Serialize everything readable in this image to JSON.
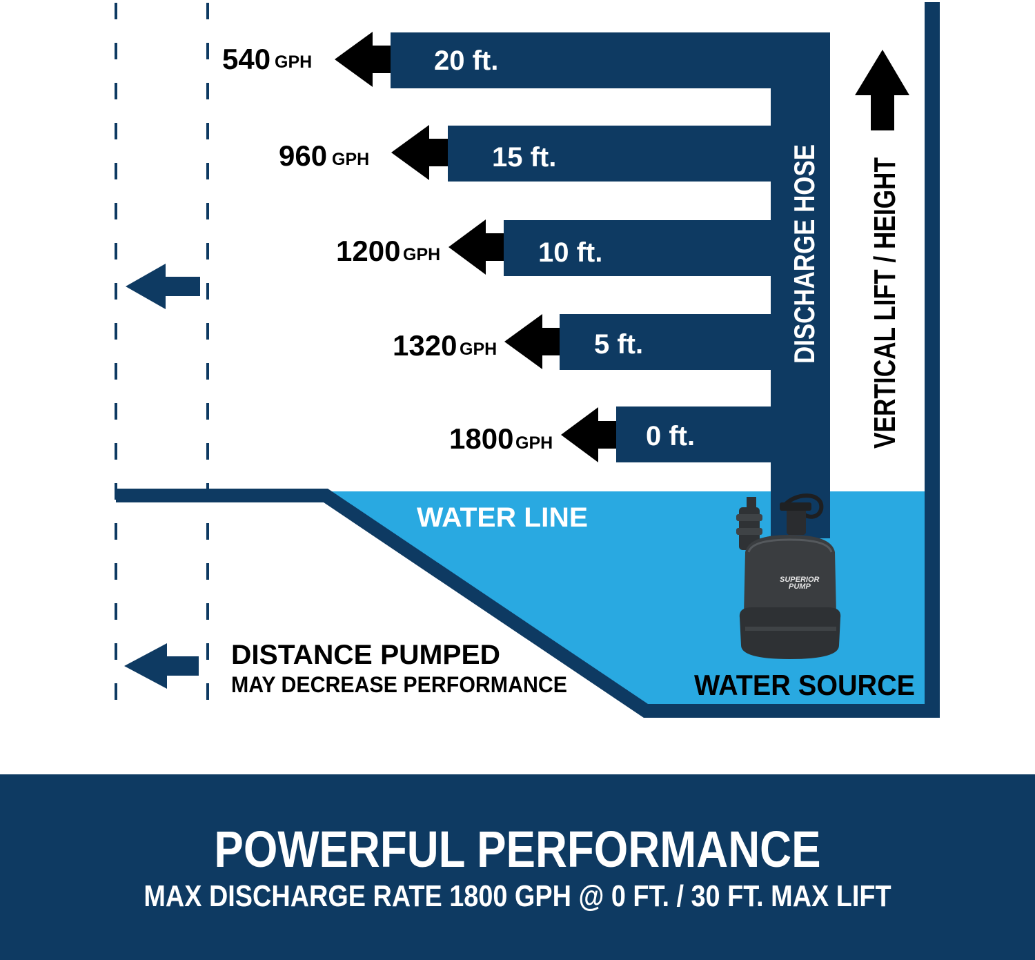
{
  "colors": {
    "navy": "#0e3a62",
    "water": "#29a9e1",
    "black": "#000000",
    "white": "#ffffff",
    "pump_body": "#3a3d40"
  },
  "flow_rows": [
    {
      "height_label": "20 ft.",
      "rate_value": "540",
      "rate_unit": "GPH"
    },
    {
      "height_label": "15 ft.",
      "rate_value": "960",
      "rate_unit": "GPH"
    },
    {
      "height_label": "10 ft.",
      "rate_value": "1200",
      "rate_unit": "GPH"
    },
    {
      "height_label": "5 ft.",
      "rate_value": "1320",
      "rate_unit": "GPH"
    },
    {
      "height_label": "0 ft.",
      "rate_value": "1800",
      "rate_unit": "GPH"
    }
  ],
  "labels": {
    "discharge_hose": "DISCHARGE HOSE",
    "vertical_lift": "VERTICAL LIFT / HEIGHT",
    "water_line": "WATER LINE",
    "water_source": "WATER SOURCE",
    "distance_title": "DISTANCE PUMPED",
    "distance_note": "MAY DECREASE PERFORMANCE",
    "pump_brand_line1": "SUPERIOR",
    "pump_brand_line2": "PUMP"
  },
  "banner": {
    "headline": "POWERFUL PERFORMANCE",
    "subline": "MAX DISCHARGE RATE 1800 GPH @ 0 FT. / 30 FT. MAX LIFT"
  }
}
